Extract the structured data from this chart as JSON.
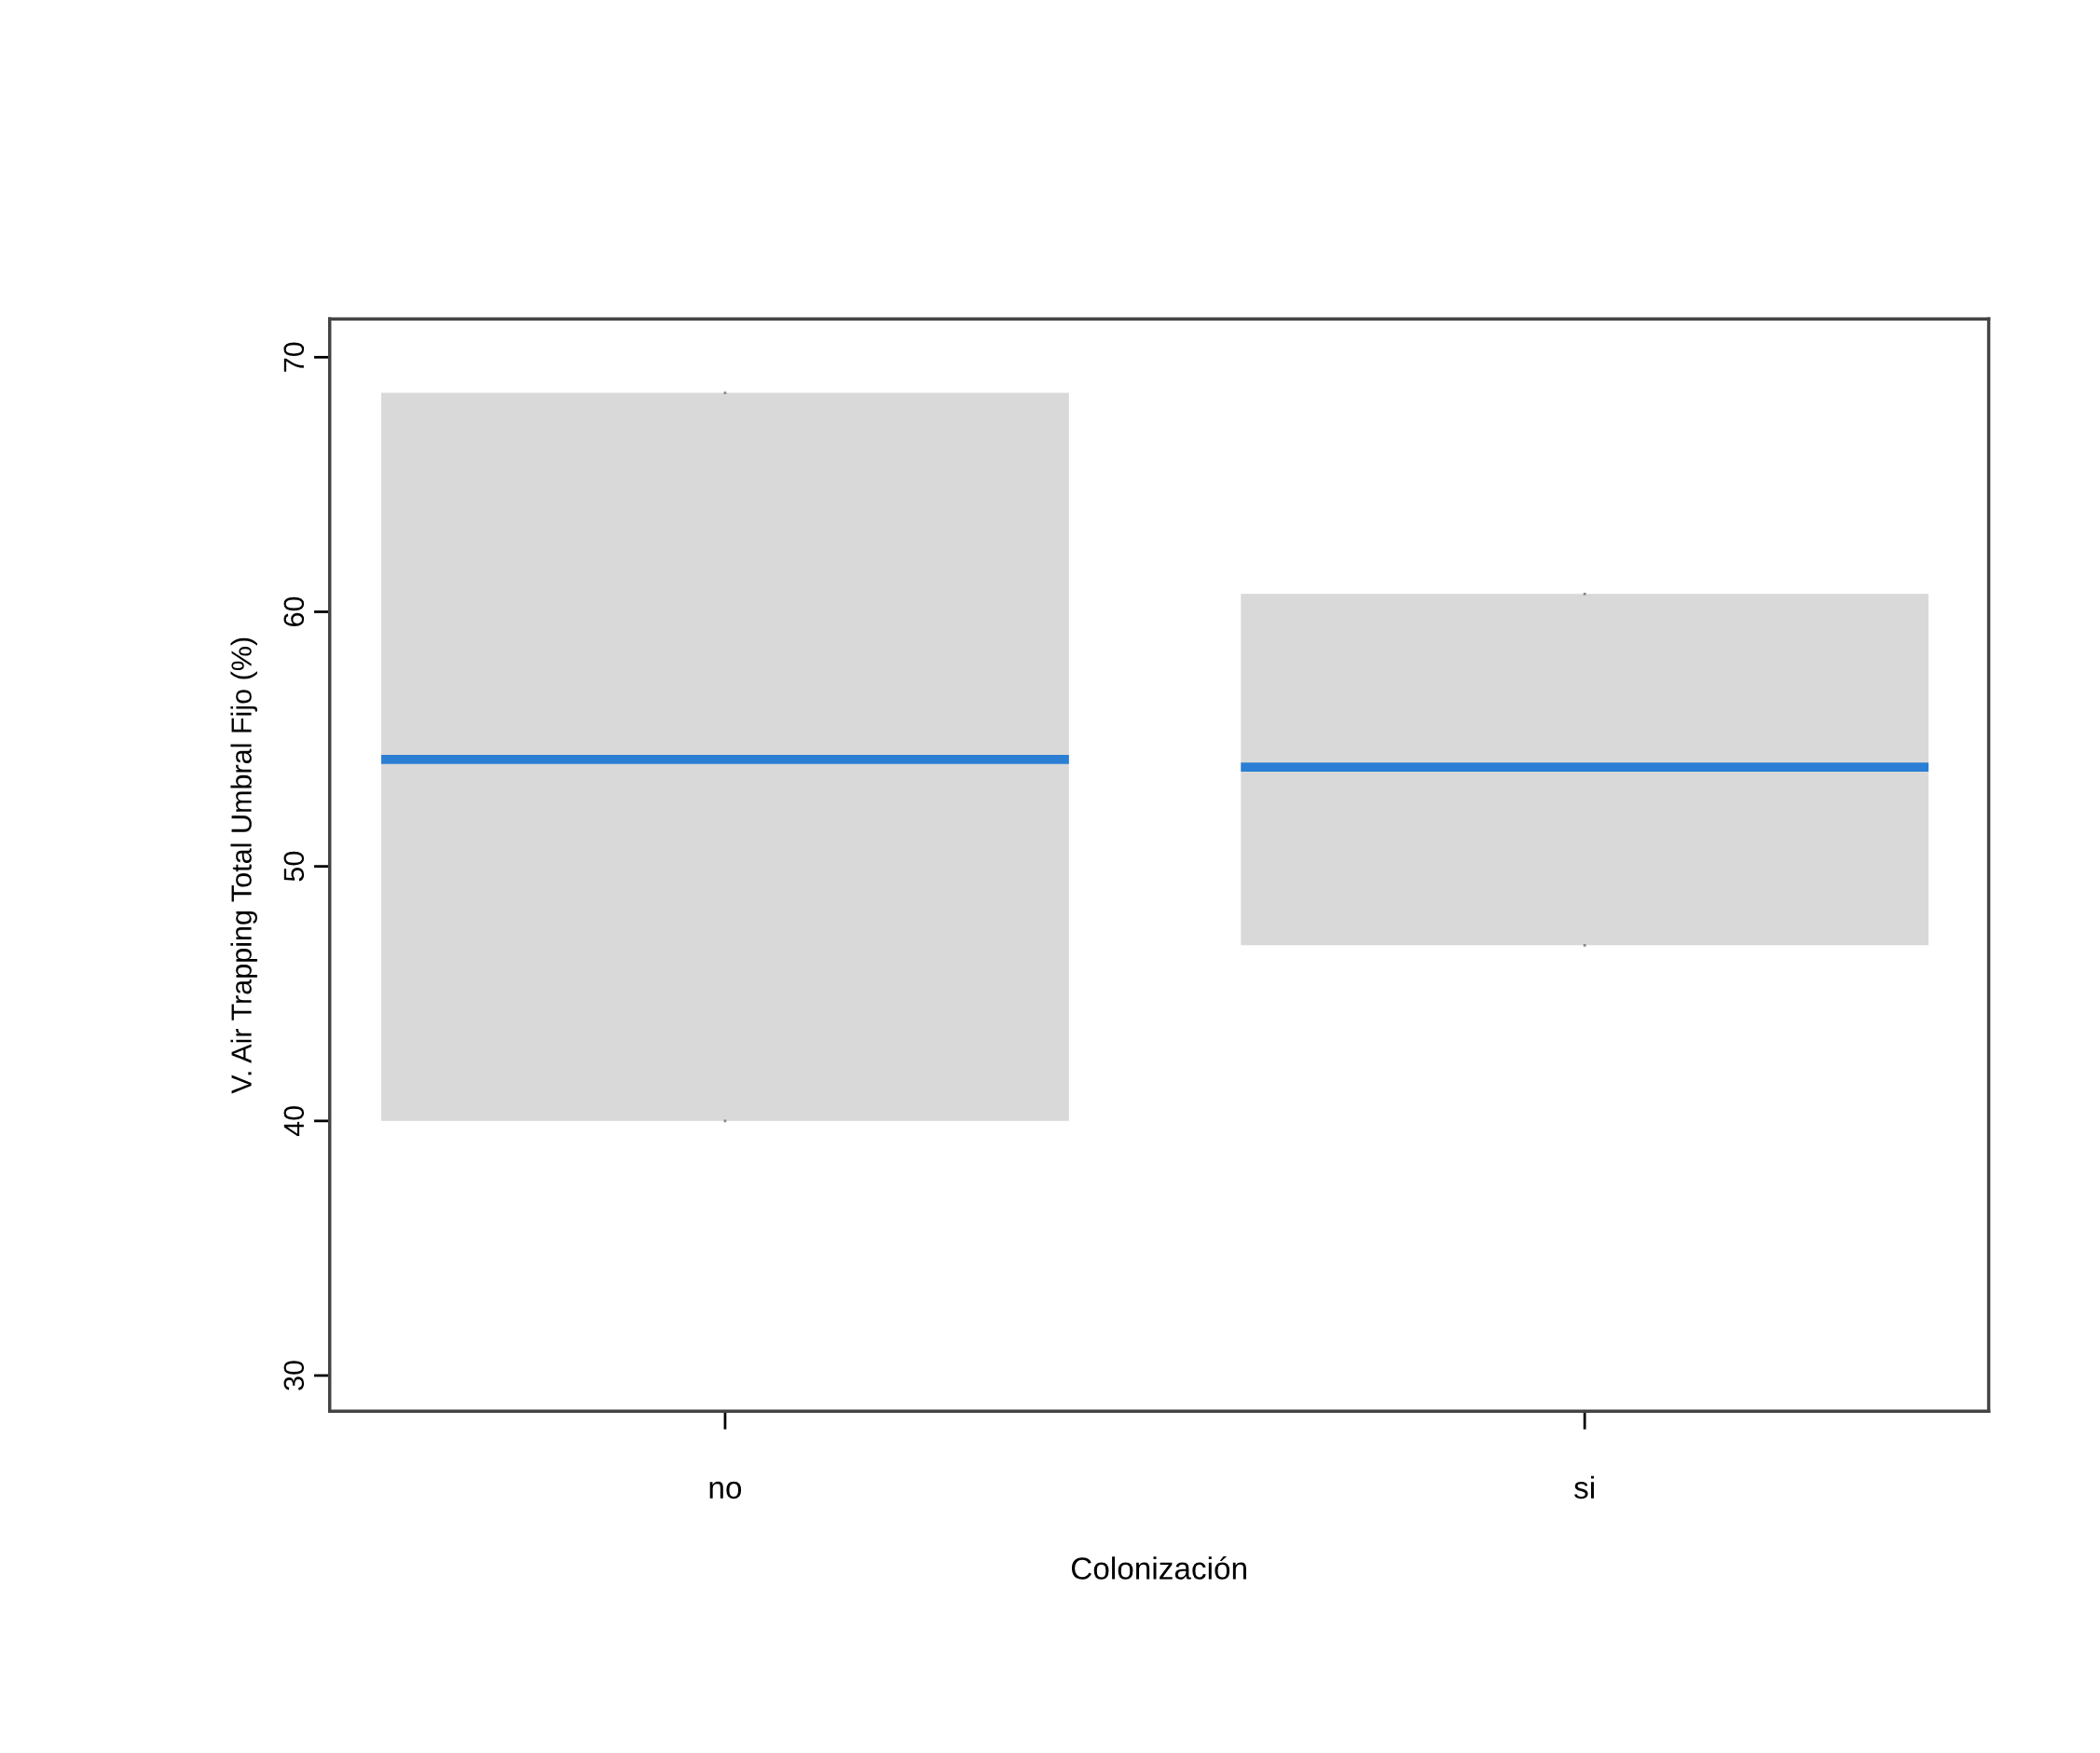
{
  "chart_data": {
    "type": "box",
    "xlabel": "Colonización",
    "ylabel": "V. Air Trapping Total Umbral Fijo (%)",
    "categories": [
      "no",
      "si"
    ],
    "series": [
      {
        "color": "#d9d9d9",
        "boxes": [
          {
            "low": 40.0,
            "q1": 40.0,
            "median": 54.2,
            "q3": 68.6,
            "high": 68.6
          },
          {
            "low": 46.9,
            "q1": 46.9,
            "median": 53.9,
            "q3": 60.7,
            "high": 60.7
          }
        ]
      }
    ],
    "ylim": [
      28.6,
      71.5
    ],
    "yticks": [
      30,
      40,
      50,
      60,
      70
    ],
    "grid": false,
    "legend": false
  }
}
